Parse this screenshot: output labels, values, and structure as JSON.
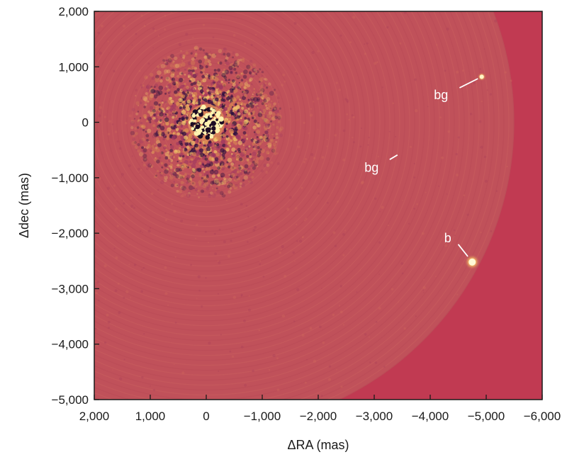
{
  "chart_data": {
    "type": "image",
    "xlabel": "ΔRA (mas)",
    "ylabel": "Δdec (mas)",
    "xlim": [
      2000,
      -6000
    ],
    "ylim": [
      -5000,
      2000
    ],
    "x_ticks": [
      {
        "value": 2000,
        "label": "2,000"
      },
      {
        "value": 1000,
        "label": "1,000"
      },
      {
        "value": 0,
        "label": "0"
      },
      {
        "value": -1000,
        "label": "−1,000"
      },
      {
        "value": -2000,
        "label": "−2,000"
      },
      {
        "value": -3000,
        "label": "−3,000"
      },
      {
        "value": -4000,
        "label": "−4,000"
      },
      {
        "value": -5000,
        "label": "−5,000"
      },
      {
        "value": -6000,
        "label": "−6,000"
      }
    ],
    "y_ticks": [
      {
        "value": 2000,
        "label": "2,000"
      },
      {
        "value": 1000,
        "label": "1,000"
      },
      {
        "value": 0,
        "label": "0"
      },
      {
        "value": -1000,
        "label": "−1,000"
      },
      {
        "value": -2000,
        "label": "−2,000"
      },
      {
        "value": -3000,
        "label": "−3,000"
      },
      {
        "value": -4000,
        "label": "−4,000"
      },
      {
        "value": -5000,
        "label": "−5,000"
      }
    ],
    "annotations": [
      {
        "text": "bg",
        "source_x": -4920,
        "source_y": 820,
        "label_x": -4320,
        "label_y": 520
      },
      {
        "text": "bg",
        "source_x": -3480,
        "source_y": -550,
        "label_x": -3080,
        "label_y": -790
      },
      {
        "text": "b",
        "source_x": -4750,
        "source_y": -2520,
        "label_x": -4390,
        "label_y": -2060
      }
    ],
    "field_radius_mas": 5500,
    "colors": {
      "background": "#c13a52",
      "field": "#c0515a",
      "bright": "#fff3b0",
      "dark": "#2b0f3f",
      "mid": "#d98a52"
    }
  }
}
